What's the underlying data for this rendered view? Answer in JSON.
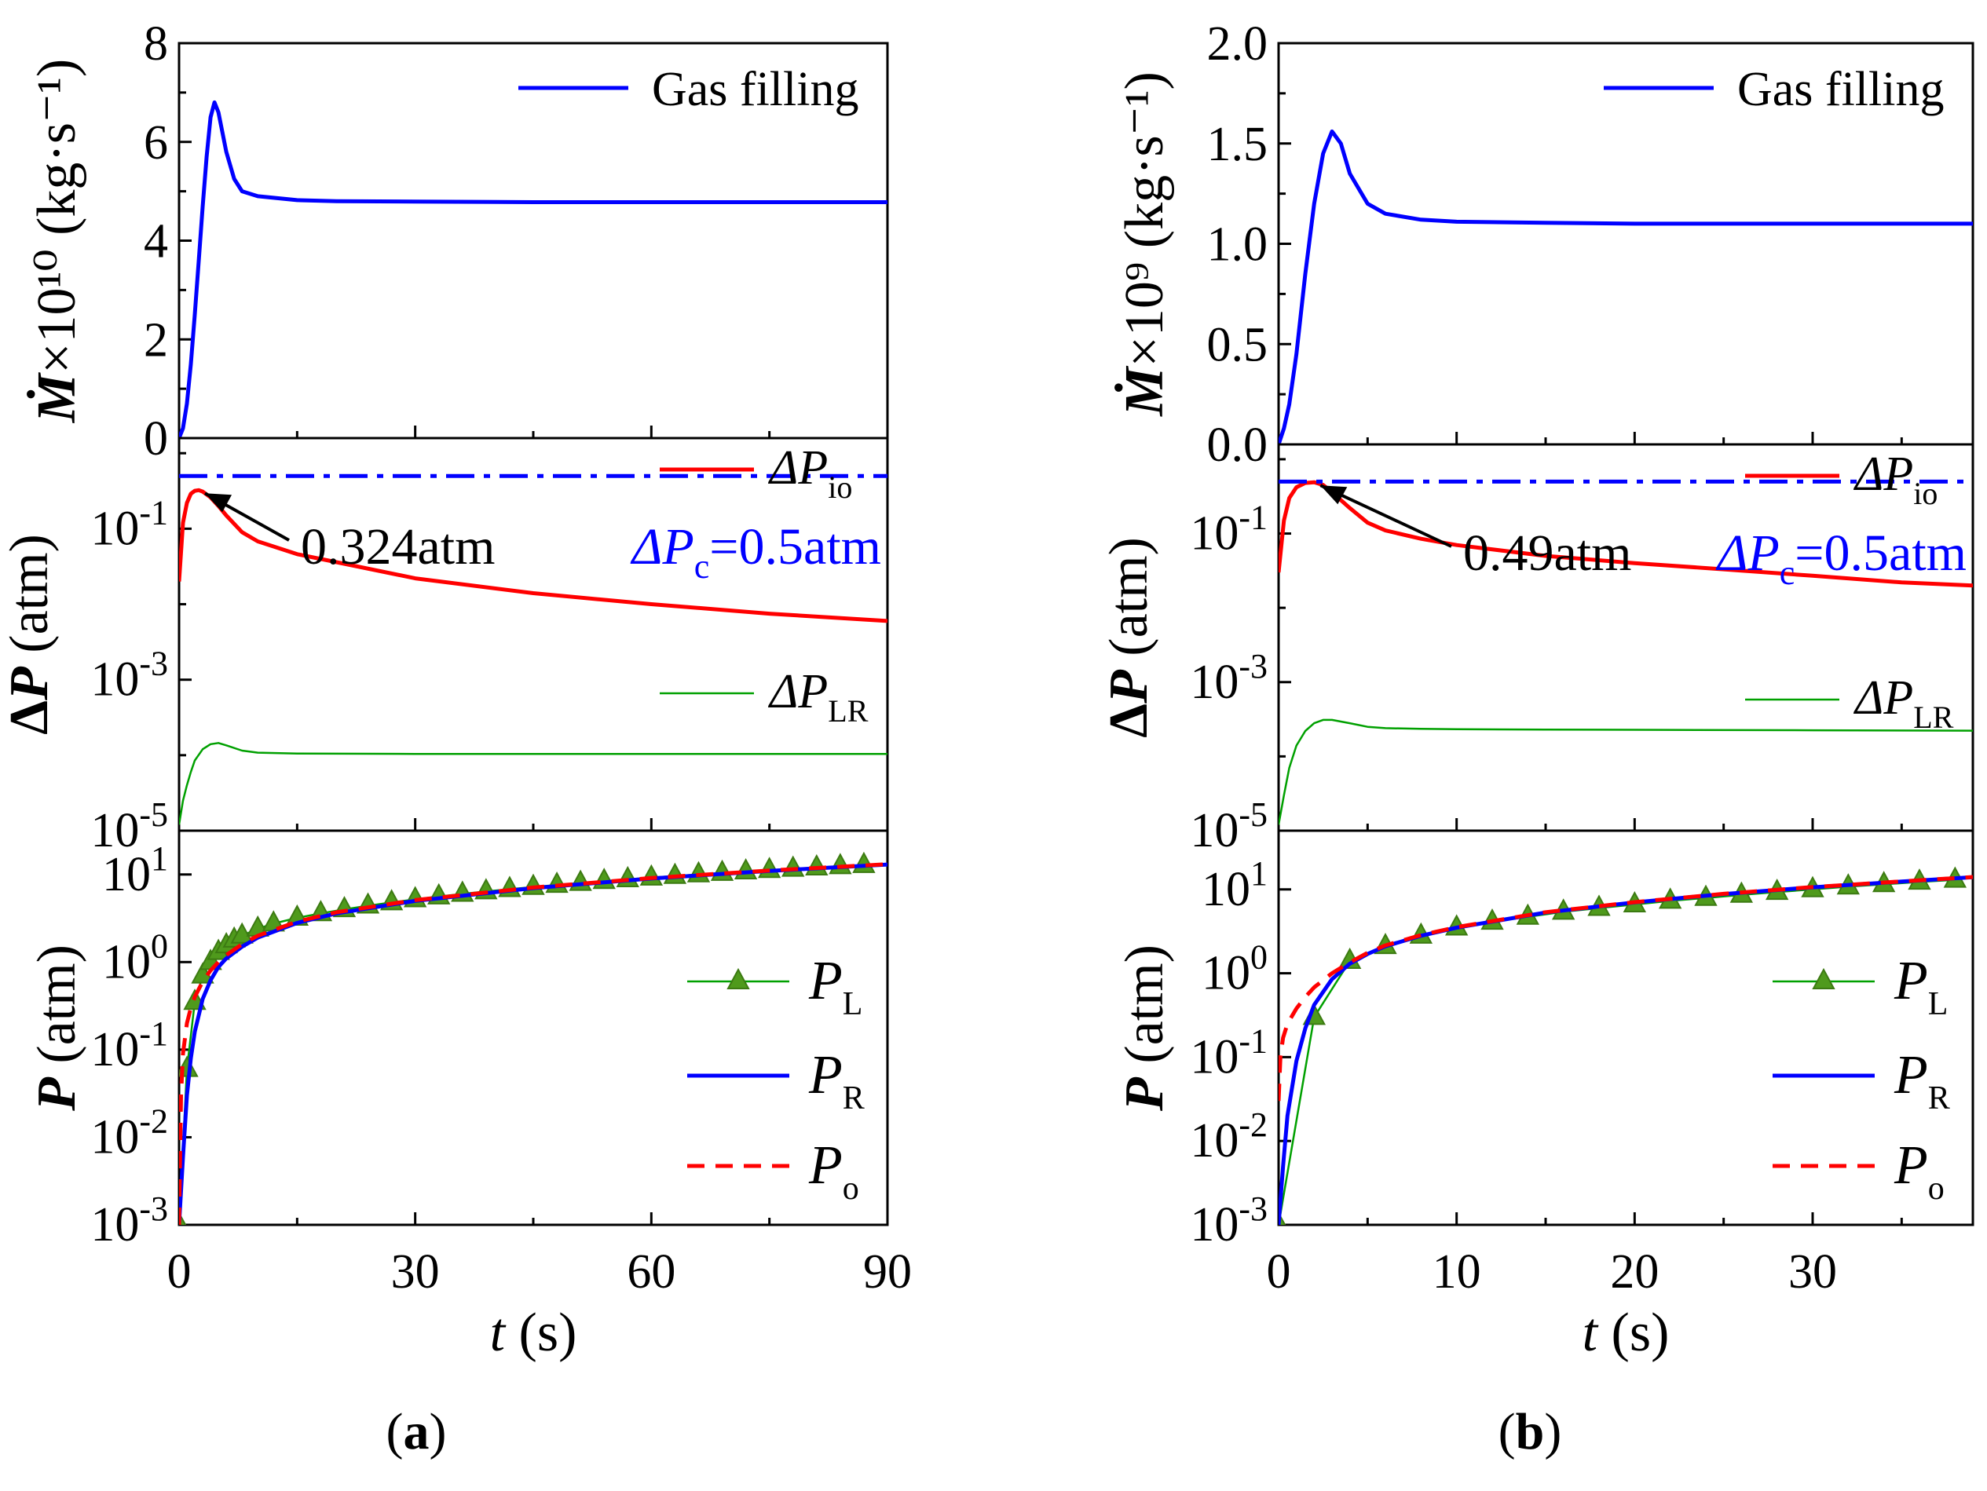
{
  "chart_data": [
    {
      "id": "a",
      "type": "line",
      "panel_label": "(a)",
      "panel_label_letter": "a",
      "xlim": [
        0,
        90
      ],
      "x_ticks": [
        0,
        30,
        60,
        90
      ],
      "x_tick_labels": [
        "0",
        "30",
        "60",
        "90"
      ],
      "xlabel_italic": "t",
      "xlabel_rest": " (s)",
      "subplots": [
        {
          "id": "mdot",
          "scale": "linear",
          "ylim": [
            0,
            8
          ],
          "y_ticks": [
            0,
            2,
            4,
            6,
            8
          ],
          "y_tick_labels": [
            "0",
            "2",
            "4",
            "6",
            "8"
          ],
          "ylabel": "Ṁ×10¹⁰ (kg·s⁻¹)",
          "series": [
            {
              "name": "Gas filling",
              "color": "#0000ff",
              "style": "solid",
              "x": [
                0,
                0.5,
                1,
                1.5,
                2,
                2.5,
                3,
                3.5,
                4,
                4.5,
                5,
                6,
                7,
                8,
                10,
                15,
                20,
                30,
                45,
                60,
                75,
                90
              ],
              "y": [
                0,
                0.2,
                0.7,
                1.5,
                2.5,
                3.6,
                4.7,
                5.7,
                6.5,
                6.8,
                6.6,
                5.8,
                5.25,
                5.0,
                4.9,
                4.82,
                4.8,
                4.79,
                4.78,
                4.78,
                4.78,
                4.78
              ]
            }
          ],
          "legend": [
            {
              "label": "Gas filling",
              "color": "#0000ff",
              "style": "solid"
            }
          ]
        },
        {
          "id": "dp",
          "scale": "log",
          "ylim_exp": [
            -5,
            0.2
          ],
          "y_tick_exps": [
            -5,
            -3,
            -1
          ],
          "y_tick_labels": [
            "10-5",
            "10-3",
            "10-1"
          ],
          "ylabel": "ΔP (atm)",
          "series": [
            {
              "name": "ΔP_io",
              "color": "#ff0000",
              "style": "solid",
              "x": [
                0,
                0.5,
                1,
                1.5,
                2,
                2.5,
                3,
                4,
                5,
                6,
                8,
                10,
                15,
                20,
                30,
                45,
                60,
                75,
                90
              ],
              "y": [
                0.02,
                0.12,
                0.22,
                0.29,
                0.318,
                0.324,
                0.31,
                0.26,
                0.2,
                0.15,
                0.09,
                0.068,
                0.046,
                0.036,
                0.022,
                0.014,
                0.01,
                0.0075,
                0.006
              ]
            },
            {
              "name": "ΔP_LR",
              "color": "#00a000",
              "style": "solid",
              "x": [
                0,
                0.5,
                1,
                1.5,
                2,
                3,
                4,
                5,
                6,
                8,
                10,
                15,
                30,
                45,
                60,
                75,
                90
              ],
              "y": [
                1.2e-05,
                2.5e-05,
                4e-05,
                6e-05,
                8.5e-05,
                0.00012,
                0.00014,
                0.000145,
                0.000135,
                0.000115,
                0.000108,
                0.000105,
                0.000104,
                0.000104,
                0.000104,
                0.000104,
                0.000104
              ]
            },
            {
              "name": "ΔP_c",
              "color": "#0000ff",
              "style": "dashdot",
              "x": [
                0,
                90
              ],
              "y": [
                0.5,
                0.5
              ]
            }
          ],
          "legend": [
            {
              "main": "ΔP",
              "sub": "io",
              "color": "#ff0000",
              "style": "solid"
            },
            {
              "main": "ΔP",
              "sub": "LR",
              "color": "#00a000",
              "style": "solid"
            }
          ],
          "annotations": [
            {
              "text": "0.324atm",
              "x": 2.5,
              "y": 0.324
            },
            {
              "text_main": "ΔP",
              "text_sub": "c",
              "text_rest": "=0.5atm",
              "color": "#0000ff"
            }
          ]
        },
        {
          "id": "p",
          "scale": "log",
          "ylim_exp": [
            -3,
            1.5
          ],
          "y_tick_exps": [
            -3,
            -2,
            -1,
            0,
            1
          ],
          "y_tick_labels": [
            "10-3",
            "10-2",
            "10-1",
            "100",
            "101"
          ],
          "ylabel": "P (atm)",
          "series": [
            {
              "name": "P_L",
              "color": "#00a000",
              "style": "solid-marker",
              "x": [
                0,
                1,
                2,
                3,
                4,
                5,
                6,
                7,
                8,
                10,
                12,
                15,
                18,
                21,
                24,
                27,
                30,
                33,
                36,
                39,
                42,
                45,
                48,
                51,
                54,
                57,
                60,
                63,
                66,
                69,
                72,
                75,
                78,
                81,
                84,
                87
              ],
              "y": [
                0.001,
                0.06,
                0.35,
                0.7,
                1.0,
                1.3,
                1.55,
                1.8,
                2.0,
                2.4,
                2.75,
                3.2,
                3.6,
                4.0,
                4.4,
                4.8,
                5.2,
                5.6,
                6.0,
                6.4,
                6.8,
                7.2,
                7.6,
                8.0,
                8.4,
                8.8,
                9.2,
                9.6,
                10.0,
                10.4,
                10.8,
                11.2,
                11.6,
                12.0,
                12.4,
                12.8
              ]
            },
            {
              "name": "P_R",
              "color": "#0000ff",
              "style": "solid",
              "x": [
                0,
                0.5,
                1,
                1.5,
                2,
                3,
                4,
                5,
                6,
                8,
                10,
                15,
                20,
                30,
                45,
                60,
                75,
                90
              ],
              "y": [
                0.001,
                0.006,
                0.03,
                0.08,
                0.16,
                0.38,
                0.62,
                0.88,
                1.1,
                1.5,
                1.9,
                2.8,
                3.6,
                5.0,
                7.0,
                9.0,
                11.0,
                13.0
              ]
            },
            {
              "name": "P_o",
              "color": "#ff0000",
              "style": "dashed",
              "x": [
                0,
                0.25,
                0.5,
                1,
                1.5,
                2,
                3,
                4,
                5,
                6,
                8,
                10,
                15,
                20,
                30,
                45,
                60,
                75,
                90
              ],
              "y": [
                0.001,
                0.03,
                0.09,
                0.2,
                0.3,
                0.4,
                0.6,
                0.8,
                1.0,
                1.2,
                1.6,
                2.0,
                2.9,
                3.7,
                5.1,
                7.1,
                9.1,
                11.1,
                13.1
              ]
            }
          ],
          "legend": [
            {
              "main": "P",
              "sub": "L",
              "color": "#00a000",
              "style": "solid-marker"
            },
            {
              "main": "P",
              "sub": "R",
              "color": "#0000ff",
              "style": "solid"
            },
            {
              "main": "P",
              "sub": "o",
              "color": "#ff0000",
              "style": "dashed"
            }
          ]
        }
      ]
    },
    {
      "id": "b",
      "type": "line",
      "panel_label": "(b)",
      "panel_label_letter": "b",
      "xlim": [
        0,
        39
      ],
      "x_ticks": [
        0,
        10,
        20,
        30
      ],
      "x_tick_labels": [
        "0",
        "10",
        "20",
        "30"
      ],
      "xlabel_italic": "t",
      "xlabel_rest": " (s)",
      "subplots": [
        {
          "id": "mdot",
          "scale": "linear",
          "ylim": [
            0,
            2.0
          ],
          "y_ticks": [
            0,
            0.5,
            1.0,
            1.5,
            2.0
          ],
          "y_tick_labels": [
            "0.0",
            "0.5",
            "1.0",
            "1.5",
            "2.0"
          ],
          "ylabel": "Ṁ×10⁹ (kg·s⁻¹)",
          "series": [
            {
              "name": "Gas filling",
              "color": "#0000ff",
              "style": "solid",
              "x": [
                0,
                0.3,
                0.6,
                1,
                1.5,
                2,
                2.5,
                3,
                3.5,
                4,
                5,
                6,
                8,
                10,
                15,
                20,
                25,
                30,
                35,
                39
              ],
              "y": [
                0,
                0.08,
                0.2,
                0.45,
                0.85,
                1.2,
                1.45,
                1.56,
                1.5,
                1.35,
                1.2,
                1.15,
                1.12,
                1.11,
                1.105,
                1.1,
                1.1,
                1.1,
                1.1,
                1.1
              ]
            }
          ],
          "legend": [
            {
              "label": "Gas filling",
              "color": "#0000ff",
              "style": "solid"
            }
          ]
        },
        {
          "id": "dp",
          "scale": "log",
          "ylim_exp": [
            -5,
            0.2
          ],
          "y_tick_exps": [
            -5,
            -3,
            -1
          ],
          "y_tick_labels": [
            "10-5",
            "10-3",
            "10-1"
          ],
          "ylabel": "ΔP (atm)",
          "series": [
            {
              "name": "ΔP_io",
              "color": "#ff0000",
              "style": "solid",
              "x": [
                0,
                0.3,
                0.6,
                1,
                1.5,
                2,
                2.5,
                3,
                4,
                5,
                6,
                8,
                10,
                15,
                20,
                25,
                30,
                35,
                39
              ],
              "y": [
                0.03,
                0.15,
                0.3,
                0.42,
                0.48,
                0.49,
                0.45,
                0.36,
                0.22,
                0.14,
                0.11,
                0.085,
                0.07,
                0.05,
                0.04,
                0.033,
                0.027,
                0.022,
                0.02
              ]
            },
            {
              "name": "ΔP_LR",
              "color": "#00a000",
              "style": "solid",
              "x": [
                0,
                0.3,
                0.6,
                1,
                1.5,
                2,
                2.5,
                3,
                4,
                5,
                6,
                8,
                10,
                15,
                20,
                30,
                39
              ],
              "y": [
                1.2e-05,
                3e-05,
                7e-05,
                0.00014,
                0.00022,
                0.00028,
                0.00031,
                0.00031,
                0.00028,
                0.00025,
                0.00024,
                0.000235,
                0.000232,
                0.00023,
                0.000228,
                0.000225,
                0.000222
              ]
            },
            {
              "name": "ΔP_c",
              "color": "#0000ff",
              "style": "dashdot",
              "x": [
                0,
                39
              ],
              "y": [
                0.5,
                0.5
              ]
            }
          ],
          "legend": [
            {
              "main": "ΔP",
              "sub": "io",
              "color": "#ff0000",
              "style": "solid"
            },
            {
              "main": "ΔP",
              "sub": "LR",
              "color": "#00a000",
              "style": "solid"
            }
          ],
          "annotations": [
            {
              "text": "0.49atm",
              "x": 2.0,
              "y": 0.49
            },
            {
              "text_main": "ΔP",
              "text_sub": "c",
              "text_rest": "=0.5atm",
              "color": "#0000ff"
            }
          ]
        },
        {
          "id": "p",
          "scale": "log",
          "ylim_exp": [
            -3,
            1.7
          ],
          "y_tick_exps": [
            -3,
            -2,
            -1,
            0,
            1
          ],
          "y_tick_labels": [
            "10-3",
            "10-2",
            "10-1",
            "100",
            "101"
          ],
          "ylabel": "P (atm)",
          "series": [
            {
              "name": "P_L",
              "color": "#00a000",
              "style": "solid-marker",
              "x": [
                0,
                2,
                4,
                6,
                8,
                10,
                12,
                14,
                16,
                18,
                20,
                22,
                24,
                26,
                28,
                30,
                32,
                34,
                36,
                38
              ],
              "y": [
                0.001,
                0.3,
                1.4,
                2.1,
                2.8,
                3.5,
                4.1,
                4.7,
                5.4,
                6.0,
                6.6,
                7.3,
                7.9,
                8.6,
                9.3,
                10.0,
                10.8,
                11.5,
                12.3,
                13.0
              ]
            },
            {
              "name": "P_R",
              "color": "#0000ff",
              "style": "solid",
              "x": [
                0,
                0.25,
                0.5,
                1,
                1.5,
                2,
                3,
                4,
                5,
                6,
                8,
                10,
                15,
                20,
                25,
                30,
                35,
                39
              ],
              "y": [
                0.001,
                0.005,
                0.02,
                0.09,
                0.22,
                0.42,
                0.85,
                1.3,
                1.7,
                2.1,
                2.8,
                3.5,
                5.3,
                7.0,
                8.8,
                10.6,
                12.4,
                14.0
              ]
            },
            {
              "name": "P_o",
              "color": "#ff0000",
              "style": "dashed",
              "x": [
                0,
                0.1,
                0.25,
                0.5,
                1,
                1.5,
                2,
                3,
                4,
                5,
                6,
                8,
                10,
                15,
                20,
                25,
                30,
                35,
                39
              ],
              "y": [
                0.03,
                0.1,
                0.17,
                0.25,
                0.38,
                0.52,
                0.68,
                1.0,
                1.35,
                1.75,
                2.15,
                2.85,
                3.55,
                5.35,
                7.05,
                8.85,
                10.65,
                12.45,
                14.05
              ]
            }
          ],
          "legend": [
            {
              "main": "P",
              "sub": "L",
              "color": "#00a000",
              "style": "solid-marker"
            },
            {
              "main": "P",
              "sub": "R",
              "color": "#0000ff",
              "style": "solid"
            },
            {
              "main": "P",
              "sub": "o",
              "color": "#ff0000",
              "style": "dashed"
            }
          ]
        }
      ]
    }
  ]
}
